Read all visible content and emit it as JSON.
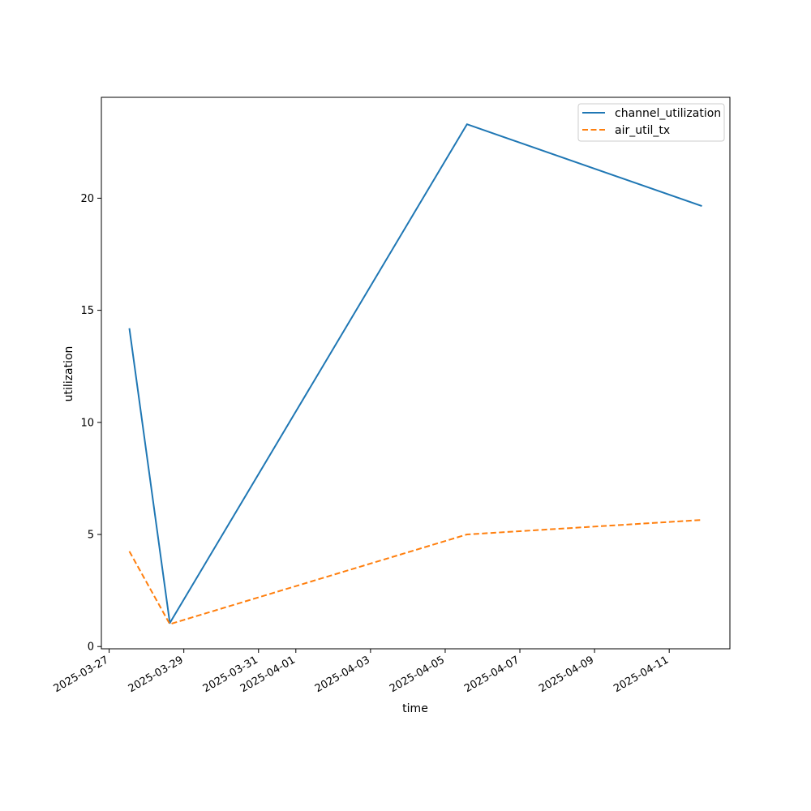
{
  "chart_data": {
    "type": "line",
    "title": "",
    "xlabel": "time",
    "ylabel": "utilization",
    "x": [
      "2025-03-27 13:00",
      "2025-03-28 15:00",
      "2025-04-05 14:00",
      "2025-04-11 21:00"
    ],
    "xlim": [
      "2025-03-26 19:00",
      "2025-04-12 15:00"
    ],
    "ylim": [
      -0.1,
      24.5
    ],
    "x_ticks": [
      "2025-03-27",
      "2025-03-29",
      "2025-03-31",
      "2025-04-01",
      "2025-04-03",
      "2025-04-05",
      "2025-04-07",
      "2025-04-09",
      "2025-04-11"
    ],
    "y_ticks": [
      0,
      5,
      10,
      15,
      20
    ],
    "series": [
      {
        "name": "channel_utilization",
        "values": [
          14.2,
          1.05,
          23.3,
          19.65
        ],
        "color": "#1f77b4",
        "style": "solid"
      },
      {
        "name": "air_util_tx",
        "values": [
          4.25,
          1.0,
          5.0,
          5.65
        ],
        "color": "#ff7f0e",
        "style": "dashed"
      }
    ],
    "legend": "top-right",
    "grid": false
  }
}
